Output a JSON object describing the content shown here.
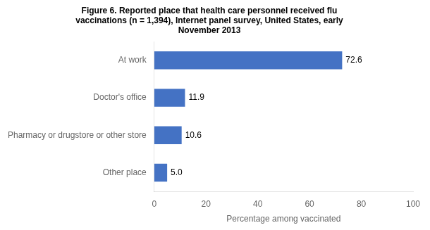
{
  "chart_data": {
    "type": "bar",
    "orientation": "horizontal",
    "title": "Figure 6. Reported place that health care personnel received flu\nvaccinations (n = 1,394), Internet panel survey, United States, early\nNovember 2013",
    "categories": [
      "At work",
      "Doctor's office",
      "Pharmacy or drugstore or other store",
      "Other place"
    ],
    "values": [
      72.6,
      11.9,
      10.6,
      5.0
    ],
    "value_labels": [
      "72.6",
      "11.9",
      "10.6",
      "5.0"
    ],
    "data_labels": true,
    "color": "#4472C4",
    "xlabel": "Percentage among vaccinated",
    "xlim": [
      0,
      100
    ],
    "xticks": [
      0,
      20,
      40,
      60,
      80,
      100
    ],
    "grid": false
  }
}
